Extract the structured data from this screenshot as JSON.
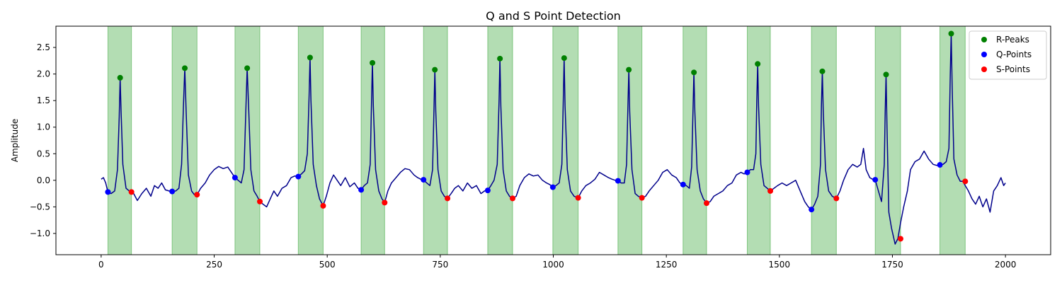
{
  "chart_data": {
    "type": "line",
    "title": "Q and S Point Detection",
    "xlabel": "",
    "ylabel": "Amplitude",
    "xlim": [
      -100,
      2100
    ],
    "ylim": [
      -1.4,
      2.9
    ],
    "xticks": [
      0,
      250,
      500,
      750,
      1000,
      1250,
      1500,
      1750,
      2000
    ],
    "yticks": [
      -1.0,
      -0.5,
      0.0,
      0.5,
      1.0,
      1.5,
      2.0,
      2.5
    ],
    "xtick_labels": [
      "0",
      "250",
      "500",
      "750",
      "1000",
      "1250",
      "1500",
      "1750",
      "2000"
    ],
    "ytick_labels": [
      "−1.0",
      "−0.5",
      "0.0",
      "0.5",
      "1.0",
      "1.5",
      "2.0",
      "2.5"
    ],
    "grid": false,
    "legend": {
      "location": "top-right",
      "entries": [
        {
          "label": "R-Peaks",
          "color": "#008000"
        },
        {
          "label": "Q-Points",
          "color": "#0000ff"
        },
        {
          "label": "S-Points",
          "color": "#ff0000"
        }
      ]
    },
    "signal_color": "#00008b",
    "span_color": "#2ca02c",
    "qrs_spans": [
      [
        15,
        67
      ],
      [
        157,
        212
      ],
      [
        296,
        351
      ],
      [
        436,
        491
      ],
      [
        575,
        627
      ],
      [
        713,
        766
      ],
      [
        855,
        910
      ],
      [
        999,
        1055
      ],
      [
        1143,
        1196
      ],
      [
        1287,
        1339
      ],
      [
        1429,
        1480
      ],
      [
        1571,
        1626
      ],
      [
        1712,
        1768
      ],
      [
        1855,
        1911
      ]
    ],
    "r_peaks": {
      "x": [
        42,
        185,
        323,
        462,
        600,
        738,
        882,
        1024,
        1167,
        1311,
        1452,
        1595,
        1736,
        1880
      ],
      "y": [
        1.93,
        2.11,
        2.11,
        2.31,
        2.21,
        2.08,
        2.29,
        2.3,
        2.08,
        2.03,
        2.19,
        2.05,
        1.99,
        2.76
      ]
    },
    "q_points": {
      "x": [
        15,
        157,
        296,
        436,
        575,
        713,
        855,
        999,
        1143,
        1287,
        1429,
        1571,
        1712,
        1855
      ],
      "y": [
        -0.22,
        -0.21,
        0.05,
        0.07,
        -0.18,
        0.01,
        -0.19,
        -0.13,
        -0.01,
        -0.08,
        0.15,
        -0.55,
        0.01,
        0.29
      ]
    },
    "s_points": {
      "x": [
        67,
        212,
        351,
        491,
        627,
        766,
        910,
        1055,
        1196,
        1339,
        1480,
        1626,
        1768,
        1911
      ],
      "y": [
        -0.22,
        -0.27,
        -0.4,
        -0.48,
        -0.42,
        -0.34,
        -0.34,
        -0.33,
        -0.33,
        -0.43,
        -0.2,
        -0.34,
        -1.1,
        -0.02
      ]
    },
    "signal": {
      "x": [
        0,
        5,
        10,
        15,
        22,
        30,
        36,
        40,
        42,
        44,
        48,
        55,
        62,
        67,
        72,
        80,
        90,
        100,
        110,
        118,
        126,
        134,
        142,
        150,
        157,
        165,
        172,
        178,
        182,
        185,
        188,
        193,
        200,
        206,
        212,
        220,
        230,
        240,
        250,
        260,
        270,
        280,
        288,
        296,
        303,
        310,
        316,
        320,
        323,
        326,
        331,
        338,
        345,
        351,
        358,
        366,
        374,
        382,
        390,
        400,
        410,
        420,
        428,
        436,
        443,
        450,
        456,
        460,
        462,
        464,
        469,
        476,
        483,
        491,
        498,
        506,
        514,
        522,
        530,
        540,
        550,
        560,
        568,
        575,
        582,
        589,
        595,
        598,
        600,
        602,
        607,
        614,
        621,
        627,
        634,
        642,
        652,
        662,
        672,
        682,
        692,
        700,
        707,
        713,
        720,
        727,
        733,
        736,
        738,
        740,
        745,
        752,
        759,
        766,
        774,
        782,
        790,
        800,
        810,
        820,
        830,
        840,
        848,
        855,
        862,
        869,
        876,
        880,
        882,
        884,
        889,
        896,
        903,
        910,
        918,
        926,
        936,
        946,
        956,
        966,
        976,
        985,
        992,
        999,
        1006,
        1013,
        1019,
        1022,
        1024,
        1026,
        1031,
        1038,
        1046,
        1055,
        1063,
        1072,
        1082,
        1092,
        1102,
        1112,
        1122,
        1130,
        1137,
        1143,
        1150,
        1157,
        1162,
        1165,
        1167,
        1169,
        1174,
        1181,
        1188,
        1196,
        1204,
        1212,
        1222,
        1232,
        1242,
        1252,
        1262,
        1272,
        1280,
        1287,
        1294,
        1301,
        1306,
        1309,
        1311,
        1313,
        1318,
        1325,
        1332,
        1339,
        1347,
        1355,
        1365,
        1375,
        1385,
        1395,
        1405,
        1415,
        1422,
        1429,
        1436,
        1443,
        1448,
        1450,
        1452,
        1454,
        1459,
        1466,
        1473,
        1480,
        1488,
        1496,
        1506,
        1516,
        1526,
        1536,
        1546,
        1556,
        1564,
        1571,
        1578,
        1585,
        1591,
        1593,
        1595,
        1597,
        1602,
        1609,
        1617,
        1626,
        1634,
        1642,
        1652,
        1662,
        1672,
        1680,
        1686,
        1692,
        1700,
        1706,
        1712,
        1719,
        1726,
        1732,
        1734,
        1736,
        1738,
        1742,
        1748,
        1756,
        1762,
        1768,
        1775,
        1783,
        1790,
        1800,
        1810,
        1820,
        1830,
        1840,
        1848,
        1855,
        1862,
        1869,
        1875,
        1878,
        1880,
        1882,
        1886,
        1893,
        1900,
        1906,
        1911,
        1918,
        1926,
        1934,
        1942,
        1950,
        1958,
        1966,
        1974,
        1982,
        1990,
        1996,
        2000
      ],
      "y": [
        0.02,
        0.05,
        -0.05,
        -0.22,
        -0.25,
        -0.2,
        0.2,
        1.2,
        1.93,
        1.3,
        0.3,
        -0.15,
        -0.2,
        -0.22,
        -0.25,
        -0.38,
        -0.25,
        -0.15,
        -0.3,
        -0.1,
        -0.15,
        -0.05,
        -0.18,
        -0.2,
        -0.21,
        -0.2,
        -0.15,
        0.3,
        1.4,
        2.11,
        1.3,
        0.1,
        -0.2,
        -0.27,
        -0.27,
        -0.15,
        -0.05,
        0.1,
        0.2,
        0.26,
        0.22,
        0.25,
        0.15,
        0.05,
        0.0,
        -0.05,
        0.2,
        1.3,
        2.11,
        1.4,
        0.2,
        -0.2,
        -0.3,
        -0.4,
        -0.45,
        -0.5,
        -0.35,
        -0.2,
        -0.3,
        -0.15,
        -0.1,
        0.05,
        0.08,
        0.07,
        0.12,
        0.18,
        0.5,
        1.6,
        2.31,
        1.5,
        0.3,
        -0.1,
        -0.35,
        -0.48,
        -0.3,
        -0.05,
        0.1,
        0.0,
        -0.1,
        0.05,
        -0.12,
        -0.05,
        -0.15,
        -0.18,
        -0.1,
        -0.05,
        0.3,
        1.5,
        2.21,
        1.4,
        0.2,
        -0.2,
        -0.35,
        -0.42,
        -0.2,
        -0.05,
        0.05,
        0.15,
        0.22,
        0.2,
        0.1,
        0.05,
        0.02,
        0.01,
        -0.05,
        -0.1,
        0.2,
        1.3,
        2.08,
        1.3,
        0.2,
        -0.2,
        -0.3,
        -0.34,
        -0.25,
        -0.15,
        -0.1,
        -0.2,
        -0.05,
        -0.15,
        -0.1,
        -0.25,
        -0.2,
        -0.19,
        -0.1,
        0.0,
        0.3,
        1.5,
        2.29,
        1.4,
        0.2,
        -0.2,
        -0.3,
        -0.34,
        -0.3,
        -0.1,
        0.05,
        0.12,
        0.08,
        0.1,
        0.0,
        -0.05,
        -0.08,
        -0.13,
        -0.1,
        -0.05,
        0.3,
        1.5,
        2.3,
        1.4,
        0.2,
        -0.2,
        -0.3,
        -0.33,
        -0.2,
        -0.1,
        -0.05,
        0.02,
        0.15,
        0.1,
        0.05,
        0.02,
        0.0,
        -0.01,
        -0.05,
        -0.05,
        0.3,
        1.4,
        2.08,
        1.3,
        0.2,
        -0.25,
        -0.3,
        -0.33,
        -0.3,
        -0.2,
        -0.1,
        0.0,
        0.15,
        0.2,
        0.1,
        0.05,
        -0.05,
        -0.08,
        -0.1,
        -0.15,
        0.25,
        1.3,
        2.03,
        1.3,
        0.2,
        -0.2,
        -0.35,
        -0.43,
        -0.4,
        -0.3,
        -0.25,
        -0.2,
        -0.1,
        -0.05,
        0.1,
        0.15,
        0.12,
        0.15,
        0.2,
        0.2,
        0.5,
        1.5,
        2.19,
        1.4,
        0.3,
        -0.1,
        -0.15,
        -0.2,
        -0.15,
        -0.1,
        -0.05,
        -0.1,
        -0.05,
        0.0,
        -0.2,
        -0.4,
        -0.5,
        -0.55,
        -0.45,
        -0.3,
        0.3,
        1.4,
        2.05,
        1.3,
        0.2,
        -0.2,
        -0.3,
        -0.34,
        -0.2,
        0.0,
        0.2,
        0.3,
        0.25,
        0.3,
        0.6,
        0.2,
        0.05,
        0.02,
        0.01,
        -0.2,
        -0.4,
        0.3,
        1.3,
        1.99,
        1.0,
        -0.6,
        -0.9,
        -1.2,
        -1.1,
        -0.8,
        -0.5,
        -0.2,
        0.2,
        0.35,
        0.4,
        0.55,
        0.4,
        0.3,
        0.28,
        0.29,
        0.3,
        0.35,
        0.6,
        2.0,
        2.76,
        1.8,
        0.4,
        0.1,
        -0.02,
        -0.02,
        -0.1,
        -0.2,
        -0.35,
        -0.45,
        -0.3,
        -0.5,
        -0.35,
        -0.6,
        -0.2,
        -0.1,
        0.05,
        -0.1,
        -0.05
      ]
    }
  }
}
